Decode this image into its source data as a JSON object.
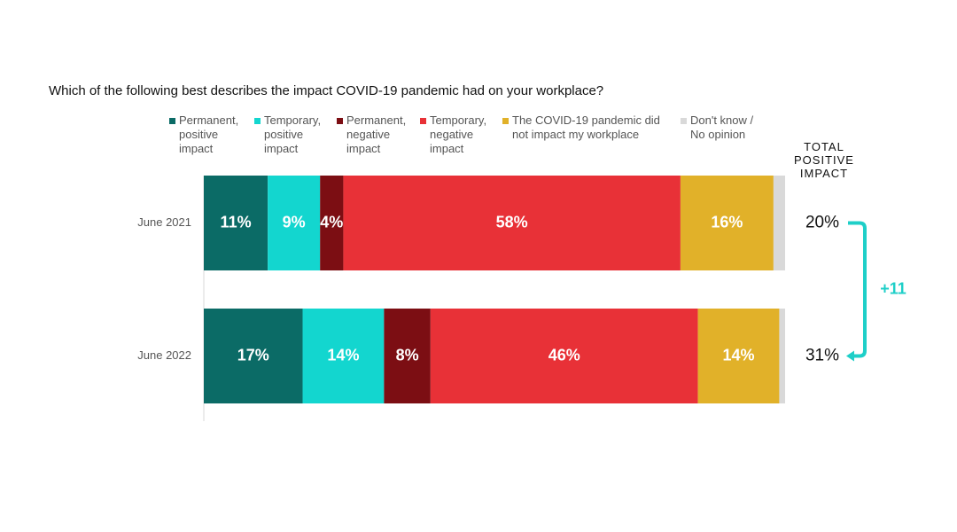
{
  "chart_data": {
    "type": "stacked-bar-horizontal",
    "title": "Which of the following best describes the impact COVID-19 pandemic had on your workplace?",
    "categories": [
      "June 2021",
      "June 2022"
    ],
    "xlim": [
      0,
      100
    ],
    "series": [
      {
        "name": "Permanent, positive impact",
        "color": "#0b6b66",
        "values": [
          11,
          17
        ],
        "value_labels": [
          "11%",
          "17%"
        ]
      },
      {
        "name": "Temporary, positive impact",
        "color": "#13d6cf",
        "values": [
          9,
          14
        ],
        "value_labels": [
          "9%",
          "14%"
        ]
      },
      {
        "name": "Permanent, negative impact",
        "color": "#7c0e13",
        "values": [
          4,
          8
        ],
        "value_labels": [
          "4%",
          "8%"
        ]
      },
      {
        "name": "Temporary, negative impact",
        "color": "#e83137",
        "values": [
          58,
          46
        ],
        "value_labels": [
          "58%",
          "46%"
        ]
      },
      {
        "name": "The COVID-19 pandemic did not impact my workplace",
        "color": "#e1b129",
        "values": [
          16,
          14
        ],
        "value_labels": [
          "16%",
          "14%"
        ]
      },
      {
        "name": "Don't know / No opinion",
        "color": "#d9d9d9",
        "values": [
          2,
          1
        ]
      }
    ],
    "total": {
      "label": "TOTAL POSITIVE IMPACT",
      "values": [
        20,
        31
      ],
      "value_labels": [
        "20%",
        "31%"
      ],
      "change": "+11",
      "color": "#1ecfc8"
    }
  }
}
